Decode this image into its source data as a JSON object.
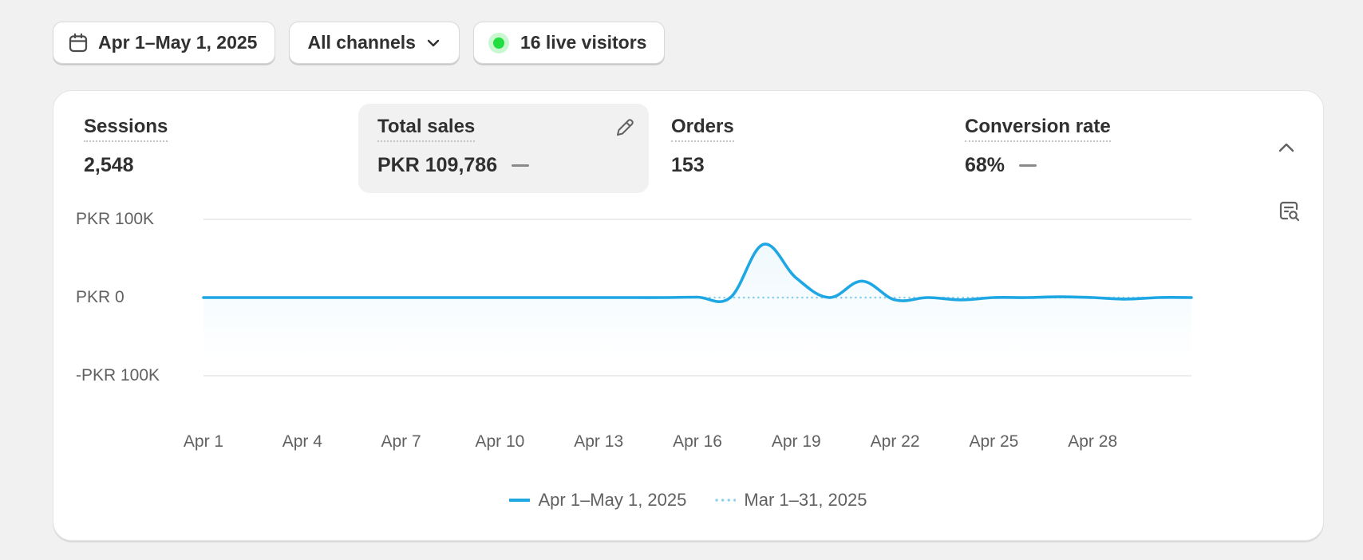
{
  "toolbar": {
    "date_range": "Apr 1–May 1, 2025",
    "channels": "All channels",
    "live_visitors": "16 live visitors"
  },
  "metrics": [
    {
      "label": "Sessions",
      "value": "2,548",
      "show_dash": false
    },
    {
      "label": "Total sales",
      "value": "PKR 109,786",
      "show_dash": true
    },
    {
      "label": "Orders",
      "value": "153",
      "show_dash": false
    },
    {
      "label": "Conversion rate",
      "value": "68%",
      "show_dash": true
    }
  ],
  "colors": {
    "primary": "#1fa7e4",
    "comparison": "#8fd0ee",
    "live": "#22dd3e"
  },
  "chart_data": {
    "type": "line",
    "yticks": [
      "PKR 100K",
      "PKR 0",
      "-PKR 100K"
    ],
    "ylim": [
      -100000,
      100000
    ],
    "categories": [
      "Apr 1",
      "Apr 2",
      "Apr 3",
      "Apr 4",
      "Apr 5",
      "Apr 6",
      "Apr 7",
      "Apr 8",
      "Apr 9",
      "Apr 10",
      "Apr 11",
      "Apr 12",
      "Apr 13",
      "Apr 14",
      "Apr 15",
      "Apr 16",
      "Apr 17",
      "Apr 18",
      "Apr 19",
      "Apr 20",
      "Apr 21",
      "Apr 22",
      "Apr 23",
      "Apr 24",
      "Apr 25",
      "Apr 26",
      "Apr 27",
      "Apr 28",
      "Apr 29",
      "Apr 30",
      "May 1"
    ],
    "xticks": [
      "Apr 1",
      "Apr 4",
      "Apr 7",
      "Apr 10",
      "Apr 13",
      "Apr 16",
      "Apr 19",
      "Apr 22",
      "Apr 25",
      "Apr 28"
    ],
    "series": [
      {
        "name": "Apr 1–May 1, 2025",
        "style": "solid",
        "values": [
          0,
          0,
          0,
          0,
          0,
          0,
          0,
          0,
          0,
          0,
          0,
          0,
          0,
          0,
          0,
          500,
          0,
          68000,
          25000,
          0,
          21000,
          -3000,
          0,
          -3000,
          0,
          0,
          1000,
          0,
          -2000,
          0,
          0
        ]
      },
      {
        "name": "Mar 1–31, 2025",
        "style": "dotted",
        "values": [
          0,
          0,
          0,
          0,
          0,
          0,
          0,
          0,
          0,
          0,
          0,
          0,
          0,
          0,
          0,
          0,
          0,
          0,
          0,
          0,
          0,
          0,
          0,
          0,
          0,
          0,
          0,
          0,
          0,
          0,
          0
        ]
      }
    ],
    "grid": true,
    "legend": "bottom-center"
  }
}
